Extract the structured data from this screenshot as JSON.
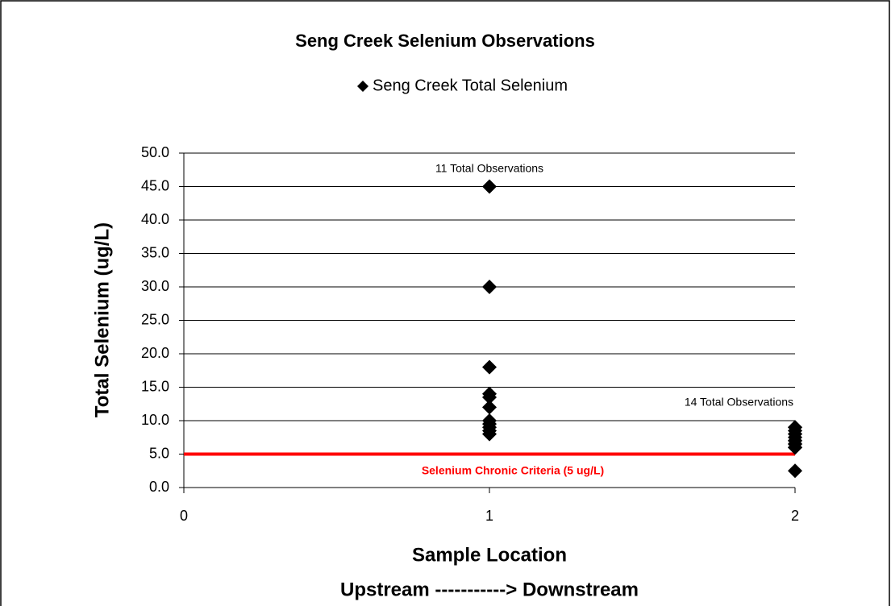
{
  "chart_data": {
    "type": "scatter",
    "title": "Seng Creek Selenium Observations",
    "xlabel": [
      "Sample Location",
      "Upstream -----------> Downstream"
    ],
    "ylabel": "Total Selenium (ug/L)",
    "xlim": [
      0,
      2
    ],
    "ylim": [
      0,
      50
    ],
    "xticks": [
      0,
      1,
      2
    ],
    "yticks": [
      {
        "value": 0,
        "label": "0.0"
      },
      {
        "value": 5,
        "label": "5.0"
      },
      {
        "value": 10,
        "label": "10.0"
      },
      {
        "value": 15,
        "label": "15.0"
      },
      {
        "value": 20,
        "label": "20.0"
      },
      {
        "value": 25,
        "label": "25.0"
      },
      {
        "value": 30,
        "label": "30.0"
      },
      {
        "value": 35,
        "label": "35.0"
      },
      {
        "value": 40,
        "label": "40.0"
      },
      {
        "value": 45,
        "label": "45.0"
      },
      {
        "value": 50,
        "label": "50.0"
      }
    ],
    "grid": true,
    "legend": "top",
    "series": [
      {
        "name": "Seng Creek Total Selenium",
        "color": "#000000",
        "x": [
          1,
          1,
          1,
          1,
          1,
          1,
          1,
          1,
          1,
          1,
          1,
          2,
          2,
          2,
          2,
          2,
          2,
          2,
          2,
          2,
          2,
          2,
          2,
          2,
          2
        ],
        "values": [
          45,
          30,
          18,
          14,
          13.5,
          12,
          10,
          9.5,
          9,
          8.5,
          8,
          9,
          9,
          8.5,
          8,
          8,
          7.5,
          7,
          7,
          6.5,
          6.5,
          6,
          6,
          6,
          2.5
        ]
      }
    ],
    "threshold": {
      "value": 5,
      "label": "Selenium Chronic Criteria (5 ug/L)",
      "color": "#ff0000"
    },
    "annotations": [
      "11 Total Observations",
      "14 Total Observations"
    ]
  }
}
